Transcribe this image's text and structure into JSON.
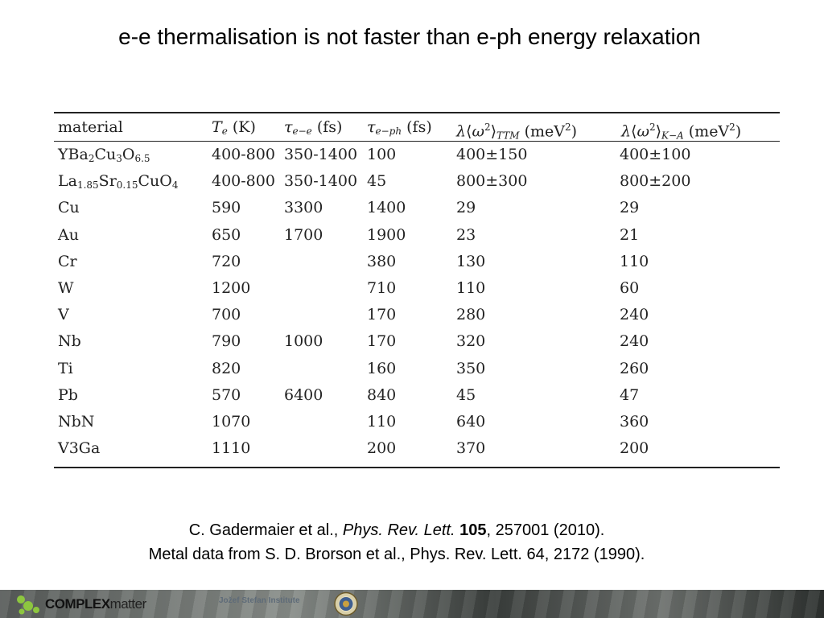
{
  "title": "e-e thermalisation is not faster than e-ph energy relaxation",
  "table": {
    "headers": [
      "material",
      "Te (K)",
      "τe−e (fs)",
      "τe−ph (fs)",
      "λ⟨ω2⟩TTM (meV2)",
      "λ⟨ω2⟩K−A (meV2)"
    ],
    "rows": [
      {
        "material": "YBa2Cu3O6.5",
        "te": "400-800",
        "tee": "350-1400",
        "teph": "100",
        "ttm": "400±150",
        "ka": "400±100"
      },
      {
        "material": "La1.85Sr0.15CuO4",
        "te": "400-800",
        "tee": "350-1400",
        "teph": "45",
        "ttm": "800±300",
        "ka": "800±200"
      },
      {
        "material": "Cu",
        "te": "590",
        "tee": "3300",
        "teph": "1400",
        "ttm": "29",
        "ka": "29"
      },
      {
        "material": "Au",
        "te": "650",
        "tee": "1700",
        "teph": "1900",
        "ttm": "23",
        "ka": "21"
      },
      {
        "material": "Cr",
        "te": "720",
        "tee": "",
        "teph": "380",
        "ttm": "130",
        "ka": "110"
      },
      {
        "material": "W",
        "te": "1200",
        "tee": "",
        "teph": "710",
        "ttm": "110",
        "ka": "60"
      },
      {
        "material": "V",
        "te": "700",
        "tee": "",
        "teph": "170",
        "ttm": "280",
        "ka": "240"
      },
      {
        "material": "Nb",
        "te": "790",
        "tee": "1000",
        "teph": "170",
        "ttm": "320",
        "ka": "240"
      },
      {
        "material": "Ti",
        "te": "820",
        "tee": "",
        "teph": "160",
        "ttm": "350",
        "ka": "260"
      },
      {
        "material": "Pb",
        "te": "570",
        "tee": "6400",
        "teph": "840",
        "ttm": "45",
        "ka": "47"
      },
      {
        "material": "NbN",
        "te": "1070",
        "tee": "",
        "teph": "110",
        "ttm": "640",
        "ka": "360"
      },
      {
        "material": "V3Ga",
        "te": "1110",
        "tee": "",
        "teph": "200",
        "ttm": "370",
        "ka": "200"
      }
    ]
  },
  "citations": {
    "line1": {
      "authors": "C. Gadermaier et al., ",
      "journal": "Phys. Rev. Lett.",
      "volume": "105",
      "rest": ", 257001 (2010)."
    },
    "line2": "Metal data from S. D. Brorson et al., Phys. Rev. Lett. 64, 2172 (1990)."
  },
  "footer": {
    "logo_bold": "COMPLEX",
    "logo_thin": "matter",
    "institute": "Jožef Stefan Institute",
    "logo_color": "#8dc63f"
  }
}
